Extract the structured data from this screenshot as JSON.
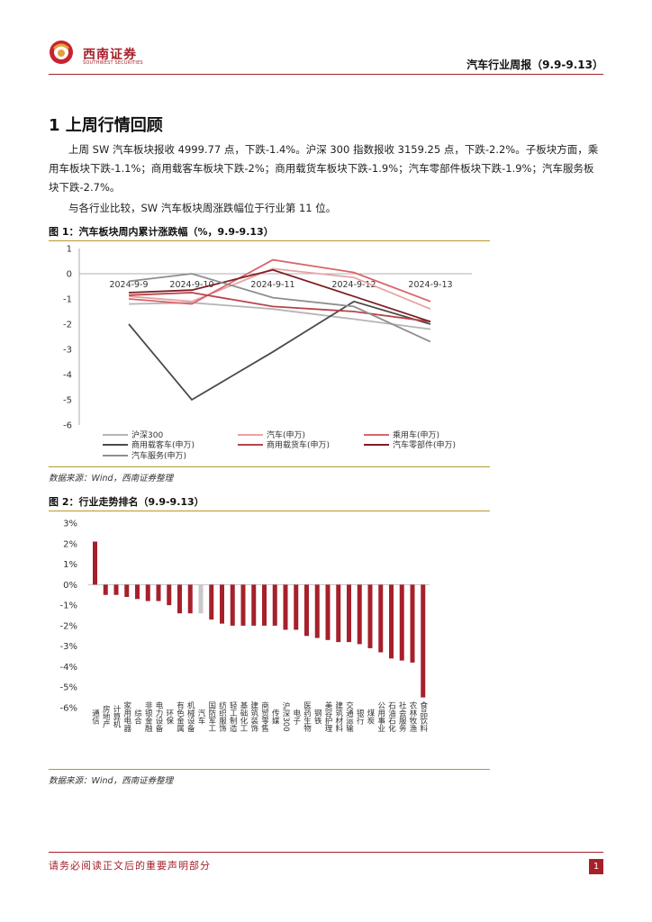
{
  "header": {
    "brand_cn": "西南证券",
    "brand_en": "SOUTHWEST SECURITIES",
    "report_title": "汽车行业周报（9.9-9.13）"
  },
  "section": {
    "title": "1 上周行情回顾",
    "para1": "上周 SW 汽车板块报收 4999.77 点，下跌-1.4%。沪深 300 指数报收 3159.25 点，下跌-2.2%。子板块方面，乘用车板块下跌-1.1%；商用载客车板块下跌-2%；商用载货车板块下跌-1.9%；汽车零部件板块下跌-1.9%；汽车服务板块下跌-2.7%。",
    "para2": "与各行业比较，SW 汽车板块周涨跌幅位于行业第 11 位。"
  },
  "figure1": {
    "title": "图 1：汽车板块周内累计涨跌幅（%，9.9-9.13）",
    "source": "数据来源：Wind，西南证券整理"
  },
  "figure2": {
    "title": "图 2：行业走势排名（9.9-9.13）",
    "source": "数据来源：Wind，西南证券整理"
  },
  "chart_data": [
    {
      "type": "line",
      "title": "汽车板块周内累计涨跌幅（%，9.9-9.13）",
      "x": [
        "2024-9-9",
        "2024-9-10",
        "2024-9-11",
        "2024-9-12",
        "2024-9-13"
      ],
      "ylim": [
        -6,
        1
      ],
      "yticks": [
        1,
        0,
        -1,
        -2,
        -3,
        -4,
        -5,
        -6
      ],
      "series": [
        {
          "name": "沪深300",
          "color": "#b5b5b5",
          "values": [
            -1.2,
            -1.15,
            -1.4,
            -1.8,
            -2.2
          ]
        },
        {
          "name": "汽车(申万)",
          "color": "#e8a3a6",
          "values": [
            -0.9,
            -1.1,
            0.2,
            -0.15,
            -1.4
          ]
        },
        {
          "name": "乘用车(申万)",
          "color": "#d9646a",
          "values": [
            -1.0,
            -1.2,
            0.55,
            0.05,
            -1.1
          ]
        },
        {
          "name": "商用载客车(申万)",
          "color": "#4a4a4a",
          "values": [
            -2.0,
            -5.0,
            -3.1,
            -1.1,
            -2.0
          ]
        },
        {
          "name": "商用载货车(申万)",
          "color": "#b8434a",
          "values": [
            -0.85,
            -0.75,
            -1.3,
            -1.5,
            -1.9
          ]
        },
        {
          "name": "汽车零部件(申万)",
          "color": "#7c1e24",
          "values": [
            -0.75,
            -0.65,
            0.15,
            -0.9,
            -1.9
          ]
        },
        {
          "name": "汽车服务(申万)",
          "color": "#8e8e8e",
          "values": [
            -0.3,
            0.0,
            -0.95,
            -1.3,
            -2.7
          ]
        }
      ]
    },
    {
      "type": "bar",
      "title": "行业走势排名（9.9-9.13）",
      "ylim": [
        -6,
        3
      ],
      "yticks": [
        "3%",
        "2%",
        "1%",
        "0%",
        "-1%",
        "-2%",
        "-3%",
        "-4%",
        "-5%",
        "-6%"
      ],
      "highlight_category": "汽车",
      "bar_color": "#a6202b",
      "highlight_color": "#c8c8c8",
      "categories": [
        "通信",
        "房地产",
        "计算机",
        "家用电器",
        "综合",
        "非银金融",
        "电力设备",
        "环保",
        "有色金属",
        "机械设备",
        "汽车",
        "国防军工",
        "纺织服饰",
        "轻工制造",
        "基础化工",
        "建筑装饰",
        "商贸零售",
        "传媒",
        "沪深300",
        "电子",
        "医药生物",
        "钢铁",
        "美容护理",
        "建筑材料",
        "交通运输",
        "银行",
        "煤炭",
        "公用事业",
        "石油石化",
        "社会服务",
        "农林牧渔",
        "食品饮料"
      ],
      "values": [
        2.1,
        -0.5,
        -0.5,
        -0.6,
        -0.7,
        -0.8,
        -0.8,
        -1.0,
        -1.4,
        -1.4,
        -1.4,
        -1.7,
        -1.9,
        -2.0,
        -2.0,
        -2.0,
        -2.0,
        -2.0,
        -2.2,
        -2.2,
        -2.5,
        -2.6,
        -2.7,
        -2.8,
        -2.8,
        -2.9,
        -3.1,
        -3.3,
        -3.6,
        -3.7,
        -3.8,
        -5.5
      ]
    }
  ],
  "footer": {
    "disclaimer": "请务必阅读正文后的重要声明部分",
    "page": "1"
  }
}
